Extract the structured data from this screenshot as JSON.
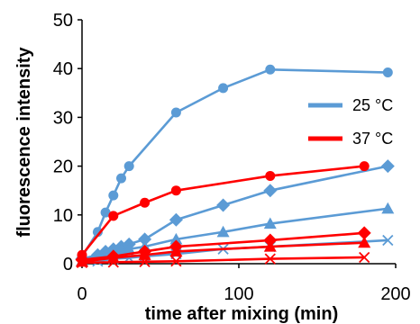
{
  "chart_data": {
    "type": "line",
    "xlabel": "time after mixing (min)",
    "ylabel": "fluorescence intensity",
    "xlim": [
      0,
      200
    ],
    "ylim": [
      0,
      50
    ],
    "xticks": [
      0,
      100,
      200
    ],
    "yticks": [
      0,
      10,
      20,
      30,
      40,
      50
    ],
    "grid": false,
    "legend_position": "right",
    "legend": [
      {
        "name": "25 °C",
        "color": "#5B9BD5"
      },
      {
        "name": "37 °C",
        "color": "#FF0000"
      }
    ],
    "series": [
      {
        "temperature": "25 °C",
        "color": "#5B9BD5",
        "marker": "circle",
        "x": [
          0,
          10,
          15,
          20,
          25,
          30,
          60,
          90,
          120,
          195
        ],
        "y": [
          1.5,
          6.5,
          10.5,
          14,
          17.5,
          20,
          31,
          36,
          39.8,
          39.2
        ]
      },
      {
        "temperature": "25 °C",
        "color": "#5B9BD5",
        "marker": "diamond",
        "x": [
          0,
          10,
          15,
          20,
          25,
          30,
          40,
          60,
          90,
          120,
          195
        ],
        "y": [
          1,
          1.8,
          2.5,
          3,
          3.5,
          4,
          5,
          9,
          12,
          15,
          20
        ]
      },
      {
        "temperature": "25 °C",
        "color": "#5B9BD5",
        "marker": "triangle",
        "x": [
          0,
          10,
          15,
          20,
          25,
          30,
          40,
          60,
          90,
          120,
          195
        ],
        "y": [
          0.5,
          1.5,
          2,
          2.5,
          2.8,
          3,
          3.5,
          5,
          6.5,
          8.2,
          11.3
        ]
      },
      {
        "temperature": "25 °C",
        "color": "#5B9BD5",
        "marker": "x",
        "x": [
          0,
          10,
          20,
          30,
          40,
          60,
          90,
          120,
          195
        ],
        "y": [
          0.3,
          0.5,
          1,
          1.2,
          1.5,
          2,
          3,
          3.5,
          4.8
        ]
      },
      {
        "temperature": "37 °C",
        "color": "#FF0000",
        "marker": "circle",
        "x": [
          0,
          20,
          40,
          60,
          120,
          180
        ],
        "y": [
          1.8,
          9.8,
          12.5,
          15,
          18,
          20
        ]
      },
      {
        "temperature": "37 °C",
        "color": "#FF0000",
        "marker": "diamond",
        "x": [
          0,
          20,
          40,
          60,
          120,
          180
        ],
        "y": [
          0.8,
          1.5,
          2.5,
          3.5,
          4.8,
          6.3
        ]
      },
      {
        "temperature": "37 °C",
        "color": "#FF0000",
        "marker": "triangle",
        "x": [
          0,
          20,
          40,
          60,
          120,
          180
        ],
        "y": [
          0.4,
          1.2,
          1.8,
          2.5,
          3.5,
          4.3
        ]
      },
      {
        "temperature": "37 °C",
        "color": "#FF0000",
        "marker": "x",
        "x": [
          0,
          20,
          40,
          60,
          120,
          180
        ],
        "y": [
          0.2,
          0.3,
          0.4,
          0.5,
          1,
          1.3
        ]
      }
    ]
  }
}
